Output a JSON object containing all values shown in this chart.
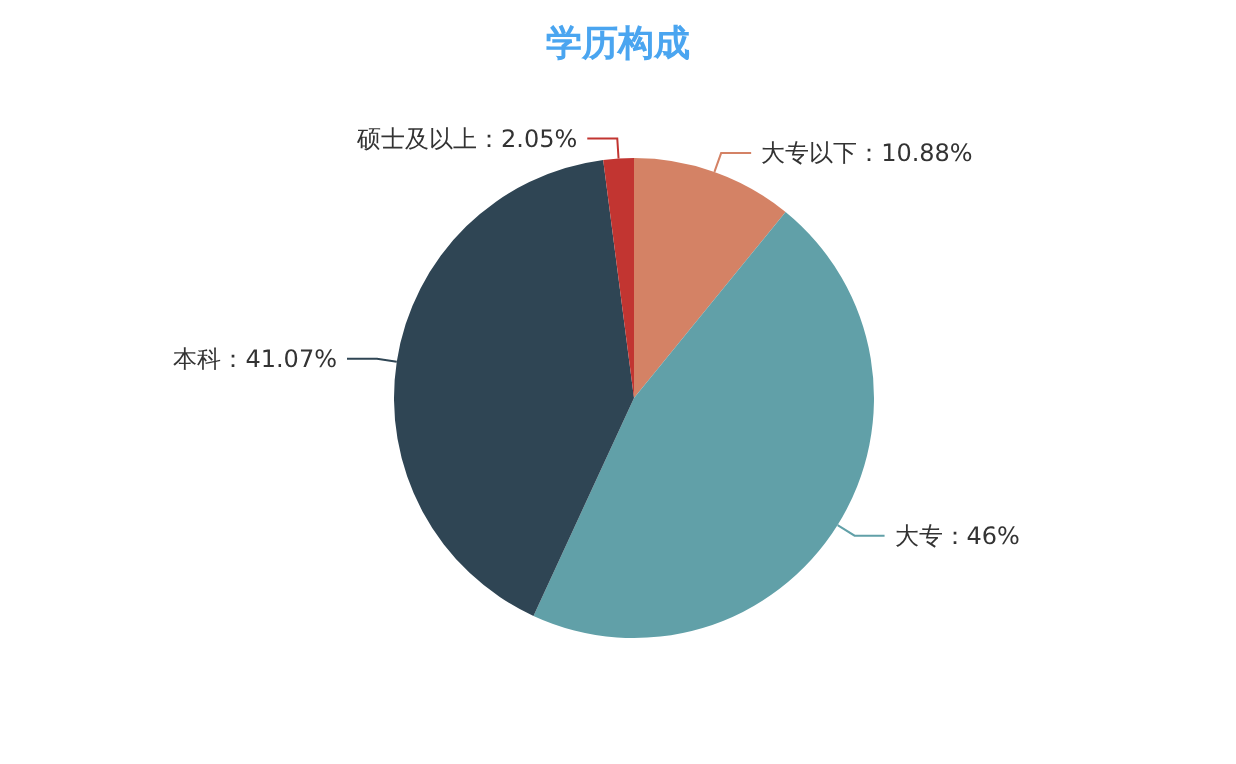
{
  "chart_data": {
    "type": "pie",
    "title": "学历构成",
    "categories": [
      "大专以下",
      "大专",
      "本科",
      "硕士及以上"
    ],
    "values": [
      10.88,
      46,
      41.07,
      2.05
    ],
    "value_labels": [
      "10.88%",
      "46%",
      "41.07%",
      "2.05%"
    ],
    "colors": [
      "#d48265",
      "#61a0a8",
      "#2f4554",
      "#c23531"
    ],
    "legend": false
  }
}
